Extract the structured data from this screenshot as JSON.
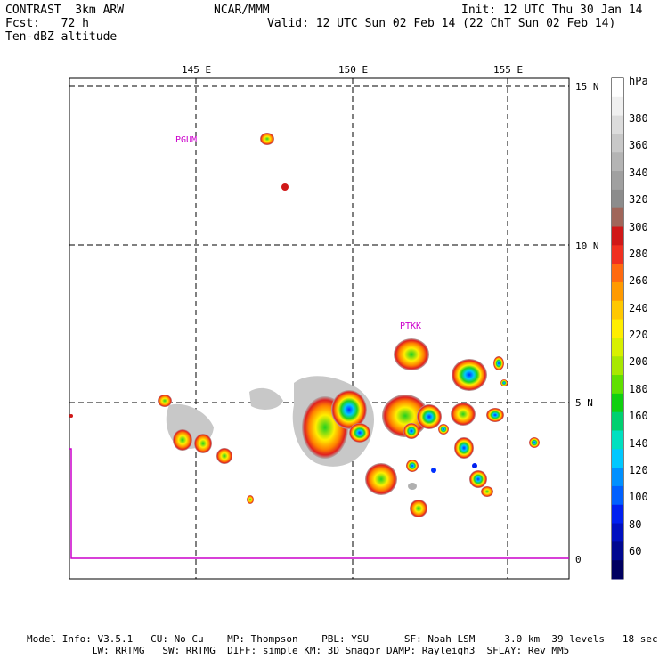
{
  "header": {
    "left_line1": "CONTRAST  3km ARW",
    "left_line2": "Fcst:   72 h",
    "left_line3": "Ten-dBZ altitude",
    "center_line1": "NCAR/MMM",
    "right_line1": "Init: 12 UTC Thu 30 Jan 14",
    "right_line2": "Valid: 12 UTC Sun 02 Feb 14 (22 ChT Sun 02 Feb 14)"
  },
  "map": {
    "lon_labels": [
      "145 E",
      "150 E",
      "155 E"
    ],
    "lat_labels": [
      "15 N",
      "10 N",
      "5 N",
      "0"
    ],
    "stations": [
      "PGUM",
      "PTKK"
    ]
  },
  "colorbar": {
    "unit": "hPa",
    "labels": [
      "380",
      "360",
      "340",
      "320",
      "300",
      "280",
      "260",
      "240",
      "220",
      "200",
      "180",
      "160",
      "140",
      "120",
      "100",
      "80",
      "60"
    ],
    "colors": [
      "#ffffff",
      "#f0f0f0",
      "#dcdcdc",
      "#c8c8c8",
      "#b4b4b4",
      "#a0a0a0",
      "#8c8c8c",
      "#a0665a",
      "#d01818",
      "#f03020",
      "#ff6a10",
      "#ff9a00",
      "#ffc800",
      "#ffee00",
      "#d8f000",
      "#a8e800",
      "#60e000",
      "#10d010",
      "#00d070",
      "#00e0c0",
      "#00c8ff",
      "#0090ff",
      "#0060ff",
      "#0020f0",
      "#0010c0",
      "#000890",
      "#000060"
    ]
  },
  "footer": {
    "line1": "Model Info: V3.5.1   CU: No Cu    MP: Thompson    PBL: YSU      SF: Noah LSM     3.0 km  39 levels   18 sec",
    "line2": "           LW: RRTMG   SW: RRTMG  DIFF: simple KM: 3D Smagor DAMP: Rayleigh3  SFLAY: Rev MM5"
  }
}
